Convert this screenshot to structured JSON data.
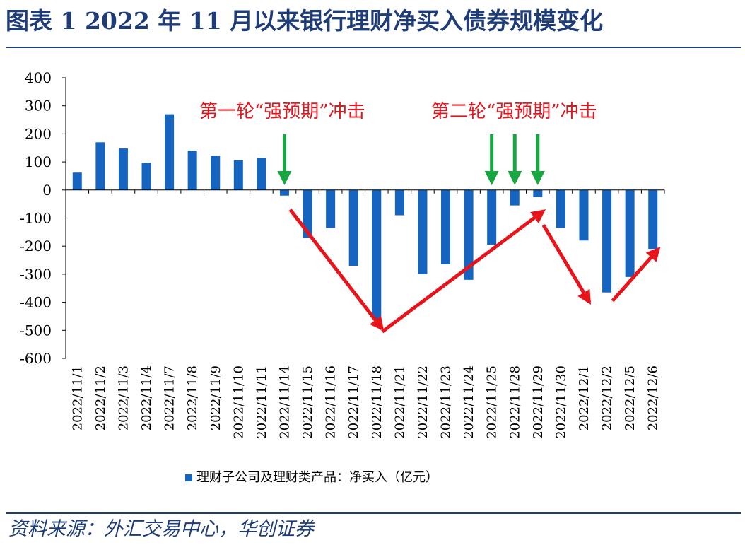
{
  "title": "图表 1  2022 年 11 月以来银行理财净买入债券规模变化",
  "source": "资料来源：外汇交易中心，华创证券",
  "colors": {
    "bar": "#1565c0",
    "arrow_red": "#e8141c",
    "arrow_green": "#17a640",
    "accent": "#1e3c78"
  },
  "chart_data": {
    "type": "bar",
    "categories": [
      "2022/11/1",
      "2022/11/2",
      "2022/11/3",
      "2022/11/4",
      "2022/11/7",
      "2022/11/8",
      "2022/11/9",
      "2022/11/10",
      "2022/11/11",
      "2022/11/14",
      "2022/11/15",
      "2022/11/16",
      "2022/11/17",
      "2022/11/18",
      "2022/11/21",
      "2022/11/22",
      "2022/11/23",
      "2022/11/24",
      "2022/11/25",
      "2022/11/28",
      "2022/11/29",
      "2022/11/30",
      "2022/12/1",
      "2022/12/2",
      "2022/12/5",
      "2022/12/6"
    ],
    "series": [
      {
        "name": "理财子公司及理财类产品：净买入（亿元）",
        "values": [
          62,
          170,
          148,
          97,
          270,
          140,
          122,
          106,
          114,
          -20,
          -170,
          -135,
          -270,
          -460,
          -90,
          -300,
          -265,
          -320,
          -195,
          -55,
          -25,
          -135,
          -180,
          -365,
          -310,
          -210
        ]
      }
    ],
    "ylim": [
      -600,
      400
    ],
    "yticks": [
      400,
      300,
      200,
      100,
      0,
      -100,
      -200,
      -300,
      -400,
      -500,
      -600
    ],
    "legend": "bottom",
    "annotations": [
      {
        "text": "第一轮“强预期”冲击",
        "green_arrows_at": [
          "2022/11/14"
        ]
      },
      {
        "text": "第二轮“强预期”冲击",
        "green_arrows_at": [
          "2022/11/25",
          "2022/11/28",
          "2022/11/29"
        ]
      }
    ],
    "red_arrows": [
      {
        "from": [
          "2022/11/14",
          -70
        ],
        "to": [
          "2022/11/18",
          -495
        ]
      },
      {
        "from": [
          "2022/11/18",
          -505
        ],
        "to": [
          "2022/11/29",
          -75
        ]
      },
      {
        "from": [
          "2022/11/29",
          -125
        ],
        "to": [
          "2022/12/1",
          -400
        ]
      },
      {
        "from": [
          "2022/12/2",
          -395
        ],
        "to": [
          "2022/12/6",
          -210
        ]
      }
    ]
  }
}
